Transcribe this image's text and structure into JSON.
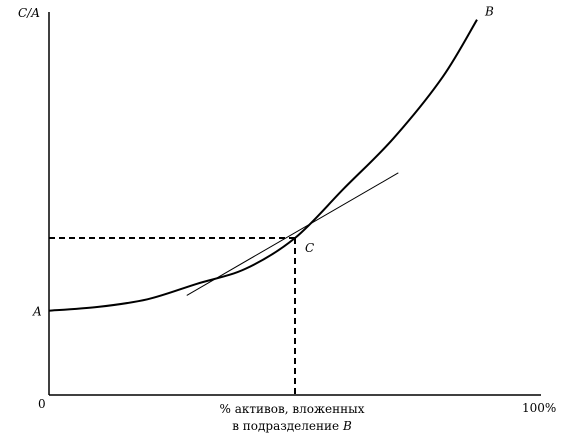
{
  "chart_data": {
    "type": "line",
    "y_axis_label": "C/A",
    "origin_label": "0",
    "x_max_label": "100%",
    "x_axis_label_line1": "% активов, вложенных",
    "x_axis_label_line2_text": "в подразделение ",
    "x_axis_label_line2_var": "B",
    "xlim": [
      0,
      100
    ],
    "ylim": [
      0,
      100
    ],
    "curve": {
      "start_label": "A",
      "end_label": "B",
      "points": [
        [
          0,
          22
        ],
        [
          10,
          23
        ],
        [
          20,
          25
        ],
        [
          30,
          29
        ],
        [
          40,
          33
        ],
        [
          50,
          41
        ],
        [
          60,
          54
        ],
        [
          70,
          67
        ],
        [
          80,
          83
        ],
        [
          87,
          98
        ]
      ]
    },
    "tangent_point": {
      "label": "C",
      "x": 50,
      "y": 41
    },
    "tangent_line": [
      [
        28,
        26
      ],
      [
        71,
        58
      ]
    ],
    "line_color": "#000000"
  }
}
